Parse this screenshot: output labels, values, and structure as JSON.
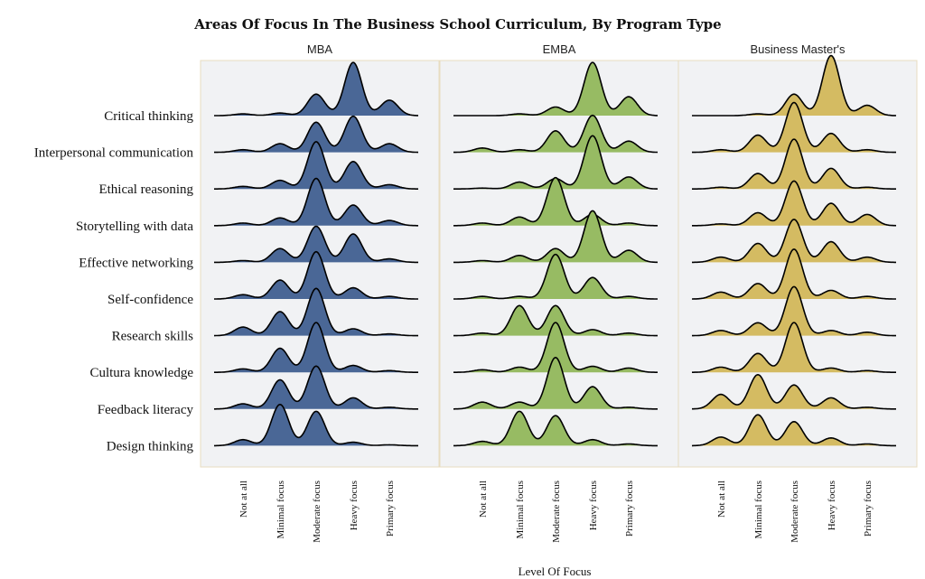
{
  "chart_data": {
    "type": "ridgeline",
    "title": "Areas Of Focus In The Business School Curriculum, By Program Type",
    "xlabel": "Level Of Focus",
    "ylabel": "",
    "levels": [
      "Not at all",
      "Minimal focus",
      "Moderate focus",
      "Heavy focus",
      "Primary focus"
    ],
    "categories": [
      "Critical thinking",
      "Interpersonal communication",
      "Ethical reasoning",
      "Storytelling with data",
      "Effective networking",
      "Self-confidence",
      "Research skills",
      "Cultura knowledge",
      "Feedback literacy",
      "Design thinking"
    ],
    "grid": false,
    "panels": [
      {
        "name": "MBA",
        "color": "#4a6796",
        "distributions": [
          [
            0.02,
            0.03,
            0.25,
            0.62,
            0.18
          ],
          [
            0.03,
            0.1,
            0.35,
            0.42,
            0.1
          ],
          [
            0.03,
            0.1,
            0.55,
            0.32,
            0.05
          ],
          [
            0.03,
            0.09,
            0.55,
            0.24,
            0.06
          ],
          [
            0.02,
            0.16,
            0.42,
            0.33,
            0.04
          ],
          [
            0.05,
            0.22,
            0.55,
            0.13,
            0.03
          ],
          [
            0.1,
            0.28,
            0.55,
            0.08,
            0.02
          ],
          [
            0.04,
            0.28,
            0.58,
            0.08,
            0.02
          ],
          [
            0.06,
            0.34,
            0.5,
            0.13,
            0.02
          ],
          [
            0.07,
            0.48,
            0.4,
            0.04,
            0.01
          ]
        ]
      },
      {
        "name": "EMBA",
        "color": "#97bb63",
        "distributions": [
          [
            0.0,
            0.02,
            0.1,
            0.62,
            0.22
          ],
          [
            0.05,
            0.03,
            0.25,
            0.43,
            0.13
          ],
          [
            0.01,
            0.08,
            0.12,
            0.62,
            0.14
          ],
          [
            0.03,
            0.1,
            0.56,
            0.13,
            0.03
          ],
          [
            0.02,
            0.08,
            0.16,
            0.6,
            0.14
          ],
          [
            0.03,
            0.03,
            0.52,
            0.25,
            0.03
          ],
          [
            0.03,
            0.35,
            0.35,
            0.07,
            0.03
          ],
          [
            0.03,
            0.06,
            0.58,
            0.07,
            0.05
          ],
          [
            0.08,
            0.08,
            0.6,
            0.26,
            0.02
          ],
          [
            0.05,
            0.4,
            0.35,
            0.07,
            0.02
          ]
        ]
      },
      {
        "name": "Business Master's",
        "color": "#d4bb62",
        "distributions": [
          [
            0.0,
            0.02,
            0.25,
            0.7,
            0.12
          ],
          [
            0.03,
            0.2,
            0.58,
            0.22,
            0.03
          ],
          [
            0.02,
            0.18,
            0.58,
            0.24,
            0.02
          ],
          [
            0.02,
            0.15,
            0.52,
            0.26,
            0.13
          ],
          [
            0.06,
            0.22,
            0.5,
            0.24,
            0.06
          ],
          [
            0.08,
            0.18,
            0.58,
            0.1,
            0.03
          ],
          [
            0.06,
            0.15,
            0.57,
            0.06,
            0.04
          ],
          [
            0.06,
            0.22,
            0.58,
            0.05,
            0.02
          ],
          [
            0.17,
            0.4,
            0.28,
            0.13,
            0.02
          ],
          [
            0.1,
            0.36,
            0.28,
            0.09,
            0.02
          ]
        ]
      }
    ]
  }
}
